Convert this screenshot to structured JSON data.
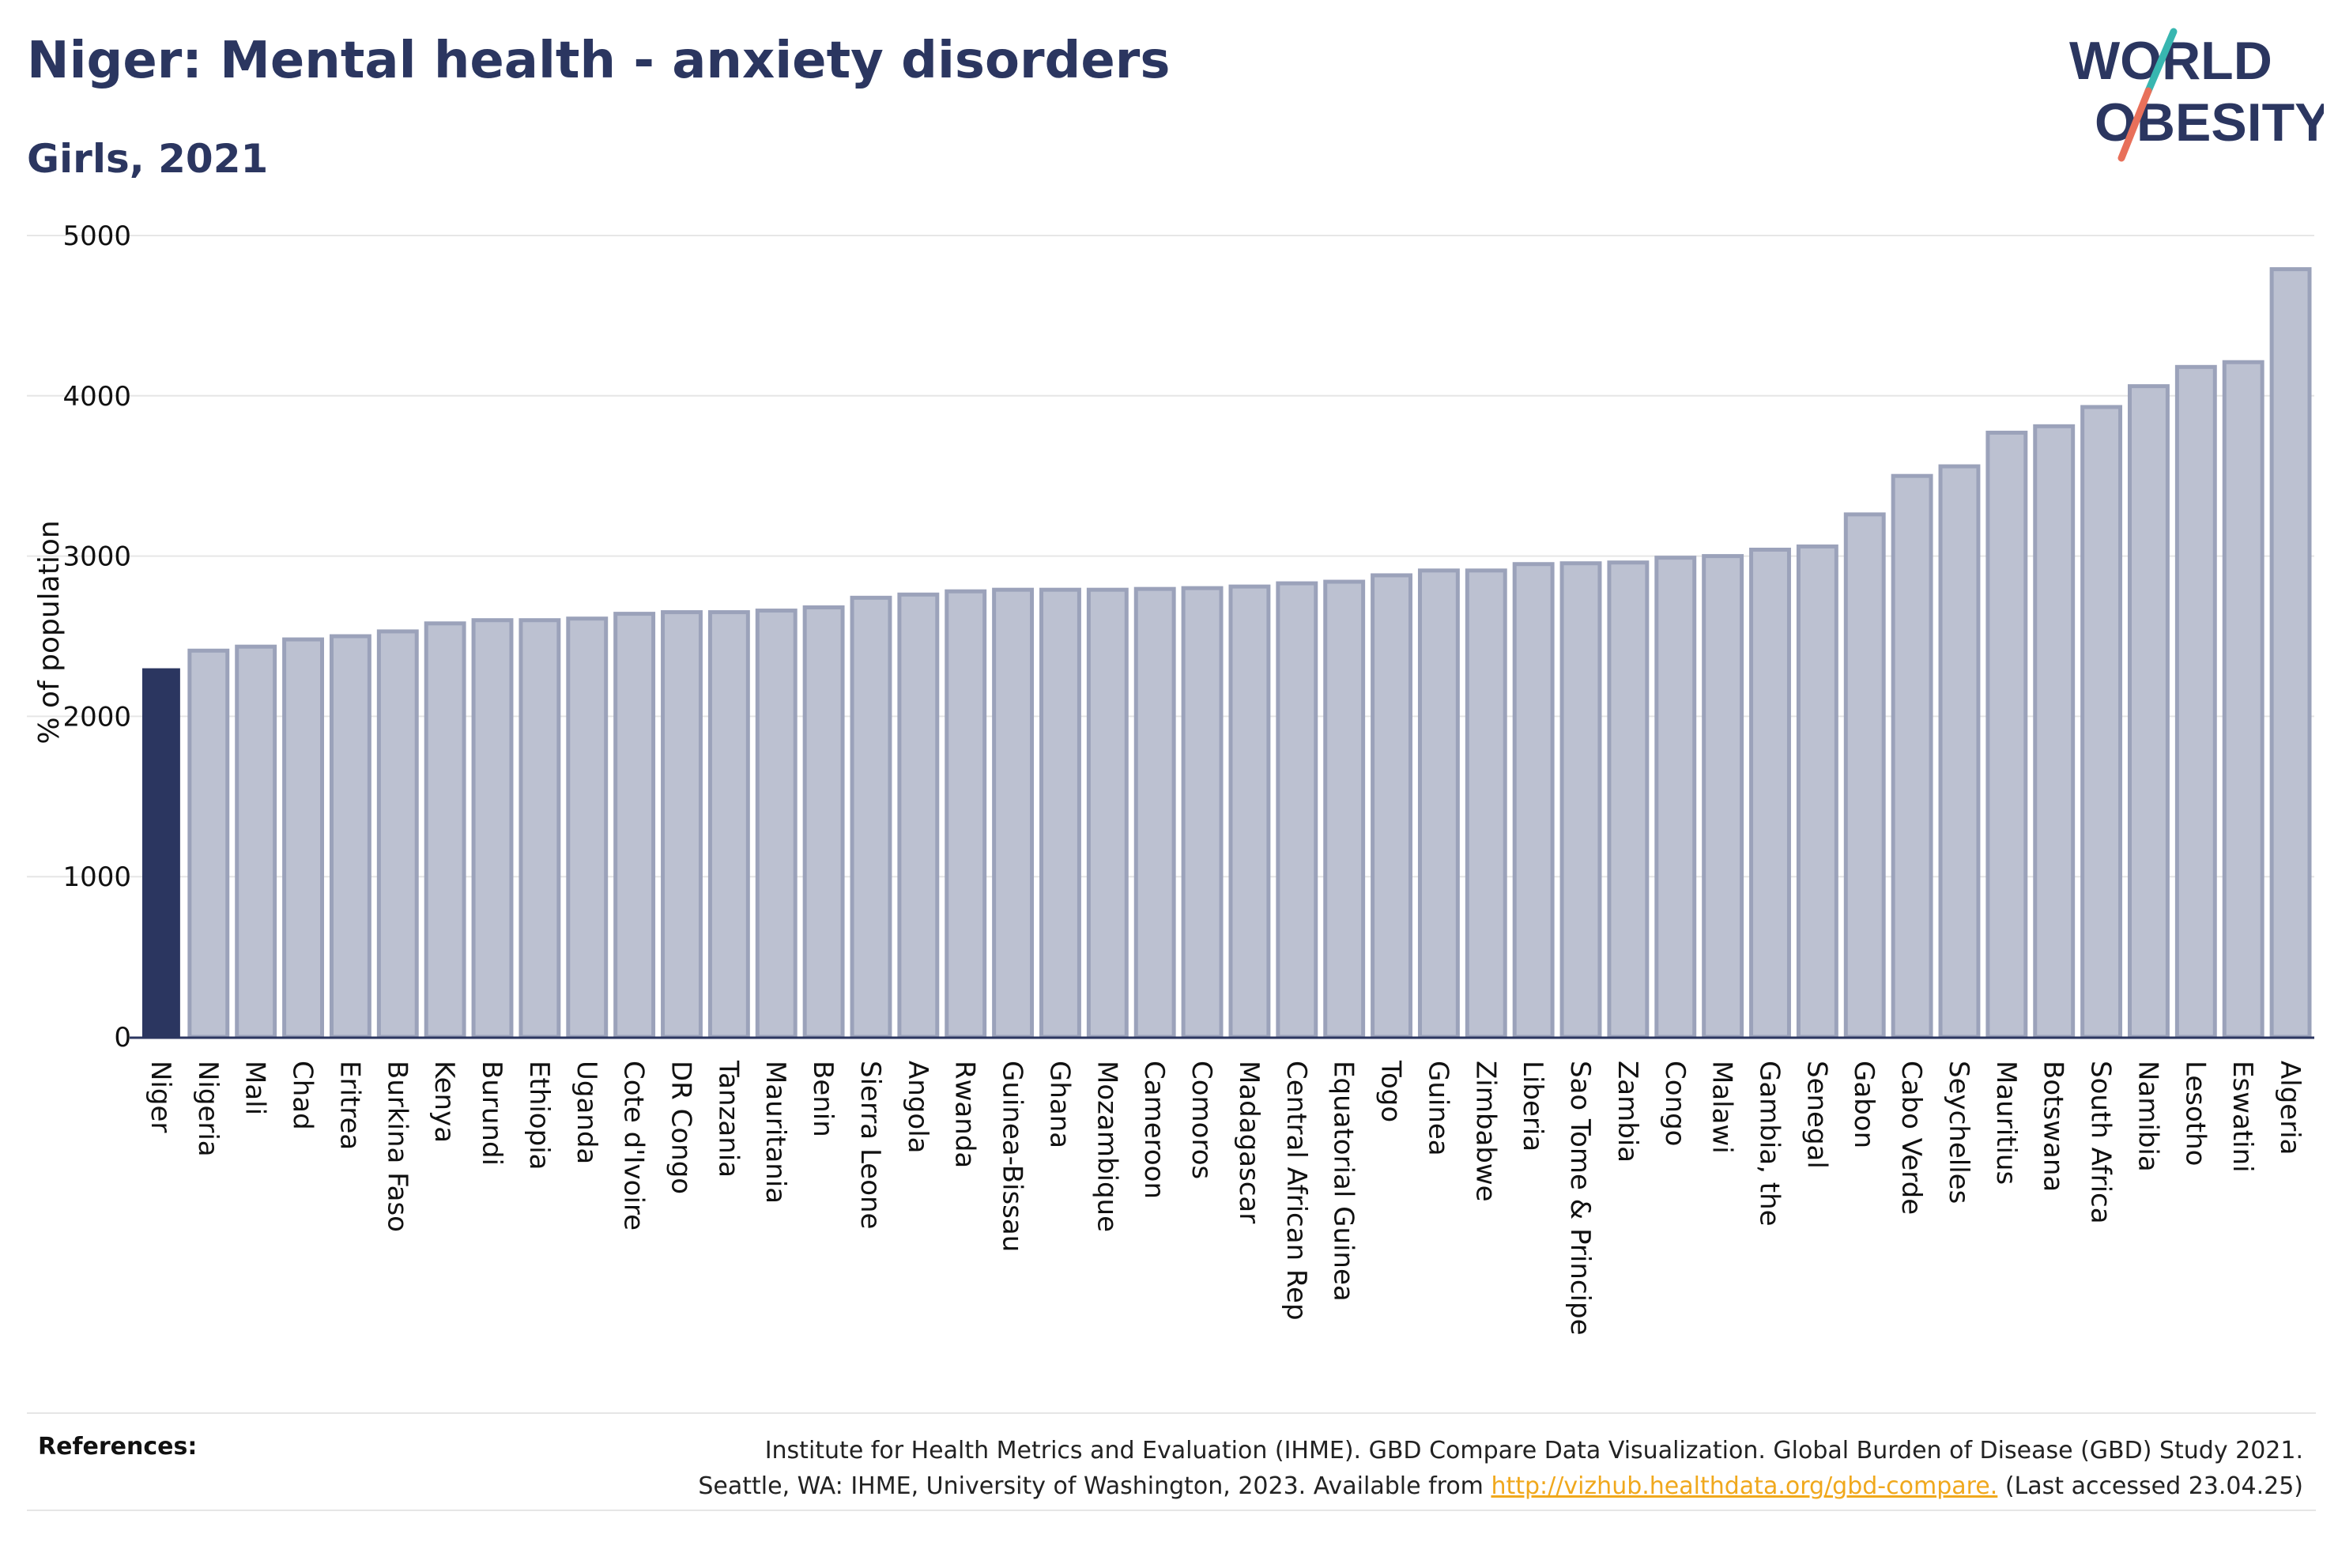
{
  "header": {
    "title": "Niger: Mental health - anxiety disorders",
    "subtitle": "Girls, 2021"
  },
  "logo": {
    "line1": "WORLD",
    "line2": "OBESITY",
    "colors": {
      "text": "#2b3660",
      "slash_top": "#38b6b0",
      "slash_bottom": "#e8705a"
    }
  },
  "colors": {
    "highlight_bar": "#2b3660",
    "other_bar_fill": "#bcc1d1",
    "other_bar_stroke": "#9ba2ba",
    "gridline": "#e6e6e6",
    "axis": "#2b3660"
  },
  "chart_data": {
    "type": "bar",
    "title": "Niger: Mental health - anxiety disorders",
    "subtitle": "Girls, 2021",
    "xlabel": "",
    "ylabel": "% of population",
    "ylim": [
      0,
      5000
    ],
    "yticks": [
      0,
      1000,
      2000,
      3000,
      4000,
      5000
    ],
    "grid": true,
    "highlight": "Niger",
    "categories": [
      "Niger",
      "Nigeria",
      "Mali",
      "Chad",
      "Eritrea",
      "Burkina Faso",
      "Kenya",
      "Burundi",
      "Ethiopia",
      "Uganda",
      "Cote d'Ivoire",
      "DR Congo",
      "Tanzania",
      "Mauritania",
      "Benin",
      "Sierra Leone",
      "Angola",
      "Rwanda",
      "Guinea-Bissau",
      "Ghana",
      "Mozambique",
      "Cameroon",
      "Comoros",
      "Madagascar",
      "Central African Rep",
      "Equatorial Guinea",
      "Togo",
      "Guinea",
      "Zimbabwe",
      "Liberia",
      "Sao Tome & Principe",
      "Zambia",
      "Congo",
      "Malawi",
      "Gambia, the",
      "Senegal",
      "Gabon",
      "Cabo Verde",
      "Seychelles",
      "Mauritius",
      "Botswana",
      "South Africa",
      "Namibia",
      "Lesotho",
      "Eswatini",
      "Algeria"
    ],
    "values": [
      2300,
      2410,
      2435,
      2480,
      2500,
      2530,
      2580,
      2600,
      2600,
      2610,
      2640,
      2650,
      2650,
      2660,
      2680,
      2740,
      2760,
      2780,
      2790,
      2790,
      2790,
      2795,
      2800,
      2810,
      2830,
      2840,
      2880,
      2910,
      2910,
      2950,
      2955,
      2960,
      2990,
      3000,
      3040,
      3060,
      3260,
      3500,
      3560,
      3770,
      3810,
      3930,
      4060,
      4180,
      4210,
      4790
    ]
  },
  "references": {
    "label": "References:",
    "line1": "Institute for Health Metrics and Evaluation (IHME). GBD Compare Data Visualization. Global Burden of Disease (GBD) Study 2021.",
    "line2_prefix": "Seattle, WA: IHME, University of Washington, 2023. Available from ",
    "link_text": "http://vizhub.healthdata.org/gbd-compare.",
    "line2_suffix": " (Last accessed 23.04.25)"
  }
}
